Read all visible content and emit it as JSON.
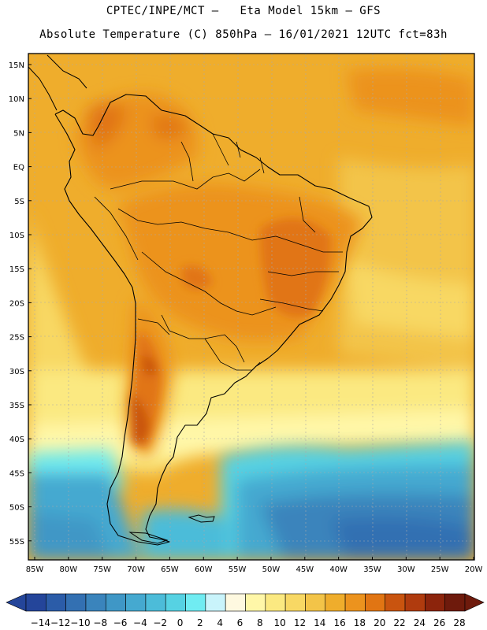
{
  "header": {
    "line1": "CPTEC/INPE/MCT –   Eta Model 15km – GFS",
    "line2": "Absolute Temperature (C) 850hPa – 16/01/2021 12UTC fct=83h"
  },
  "map": {
    "lon_range": [
      -85,
      -20
    ],
    "lat_range": [
      -59,
      17
    ],
    "lat_ticks": [
      "15N",
      "10N",
      "5N",
      "EQ",
      "5S",
      "10S",
      "15S",
      "20S",
      "25S",
      "30S",
      "35S",
      "40S",
      "45S",
      "50S",
      "55S"
    ],
    "lon_ticks": [
      "85W",
      "80W",
      "75W",
      "70W",
      "65W",
      "60W",
      "55W",
      "50W",
      "45W",
      "40W",
      "35W",
      "30W",
      "25W",
      "20W"
    ]
  },
  "colorbar": {
    "labels": [
      "-14",
      "-12",
      "-10",
      "-8",
      "-6",
      "-4",
      "-2",
      "0",
      "2",
      "4",
      "6",
      "8",
      "10",
      "12",
      "14",
      "16",
      "18",
      "20",
      "22",
      "24",
      "26",
      "28"
    ],
    "colors": [
      "#24459a",
      "#2b5ca8",
      "#3370b2",
      "#3a84bc",
      "#3f97c6",
      "#45a9d0",
      "#4cbcd9",
      "#56d2e3",
      "#70ecf2",
      "#c9f4fb",
      "#fef9e0",
      "#fff7a8",
      "#fbe981",
      "#f8d864",
      "#f3c448",
      "#efad2c",
      "#ec931e",
      "#e17513",
      "#c9540f",
      "#b03b0e",
      "#8c240c",
      "#6e1a0c"
    ],
    "under_color": "#24459a",
    "over_color": "#6e1a0c"
  }
}
